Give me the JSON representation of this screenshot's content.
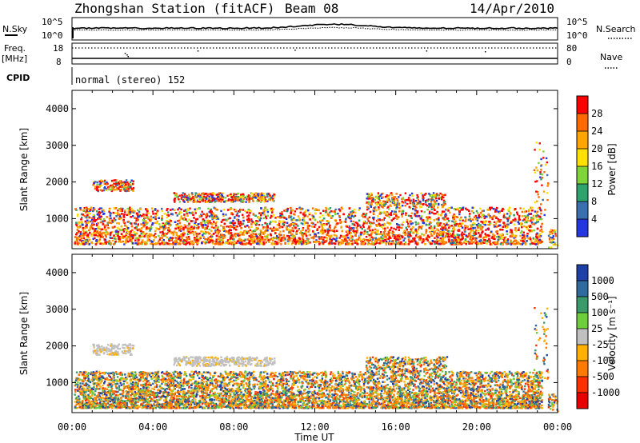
{
  "header": {
    "station_title": "Zhongshan Station (fitACF)",
    "beam": "Beam 08",
    "date": "14/Apr/2010"
  },
  "strip_sky": {
    "left_label": "N.Sky",
    "left_ticks": [
      "10^5",
      "10^0"
    ],
    "right_label": "N.Search",
    "right_ticks": [
      "10^5",
      "10^0"
    ]
  },
  "strip_freq": {
    "left_label": "Freq.",
    "left_unit": "[MHz]",
    "left_ticks": [
      "18",
      "8"
    ],
    "right_label": "Nave",
    "right_ticks": [
      "80",
      "0"
    ]
  },
  "cpid": {
    "label": "CPID",
    "value": "normal (stereo) 152"
  },
  "panels": {
    "ylabel": "Slant Range [km]",
    "yticks": [
      "4000",
      "3000",
      "2000",
      "1000"
    ],
    "xticks": [
      "00:00",
      "04:00",
      "08:00",
      "12:00",
      "16:00",
      "20:00",
      "00:00"
    ],
    "xlabel": "Time UT"
  },
  "power_scale": {
    "label": "Power [dB]",
    "ticks": [
      "28",
      "24",
      "20",
      "16",
      "12",
      "8",
      "4"
    ],
    "colors": [
      "#ff0000",
      "#ff6a00",
      "#ffa500",
      "#ffe000",
      "#7fd43a",
      "#2ea36b",
      "#3a6fb0",
      "#2436e0"
    ]
  },
  "velocity_scale": {
    "label": "Velocity [m s⁻¹]",
    "ticks": [
      "1000",
      "500",
      "100",
      "25",
      "-25",
      "-100",
      "-500",
      "-1000"
    ],
    "colors": [
      "#1f3fa8",
      "#2e6a9e",
      "#3a9a6a",
      "#6fcf3a",
      "#c0c0c0",
      "#ffb000",
      "#ff7a00",
      "#ff3000",
      "#e80000"
    ]
  },
  "chart_data": {
    "type": "heatmap",
    "panels": [
      "Power [dB]",
      "Velocity [m s⁻¹]"
    ],
    "xlabel": "Time UT",
    "ylabel": "Slant Range [km]",
    "x_range_hours": [
      0,
      24
    ],
    "y_range_km": [
      180,
      4500
    ],
    "scatter_regions": [
      {
        "t_start": 0.1,
        "t_end": 23.2,
        "r_low": 300,
        "r_high": 1300,
        "note": "main echo band"
      },
      {
        "t_start": 1.0,
        "t_end": 3.0,
        "r_low": 1750,
        "r_high": 2050
      },
      {
        "t_start": 5.0,
        "t_end": 10.0,
        "r_low": 1450,
        "r_high": 1700
      },
      {
        "t_start": 14.5,
        "t_end": 18.5,
        "r_low": 1300,
        "r_high": 1700
      },
      {
        "t_start": 22.8,
        "t_end": 23.5,
        "r_low": 1000,
        "r_high": 3100
      },
      {
        "t_start": 23.5,
        "t_end": 24.0,
        "r_low": 200,
        "r_high": 700
      }
    ],
    "power_colorbar": {
      "min": 0,
      "max": 32,
      "ticks": [
        4,
        8,
        12,
        16,
        20,
        24,
        28
      ]
    },
    "velocity_colorbar": {
      "ticks": [
        -1000,
        -500,
        -100,
        -25,
        25,
        100,
        500,
        1000
      ]
    }
  }
}
